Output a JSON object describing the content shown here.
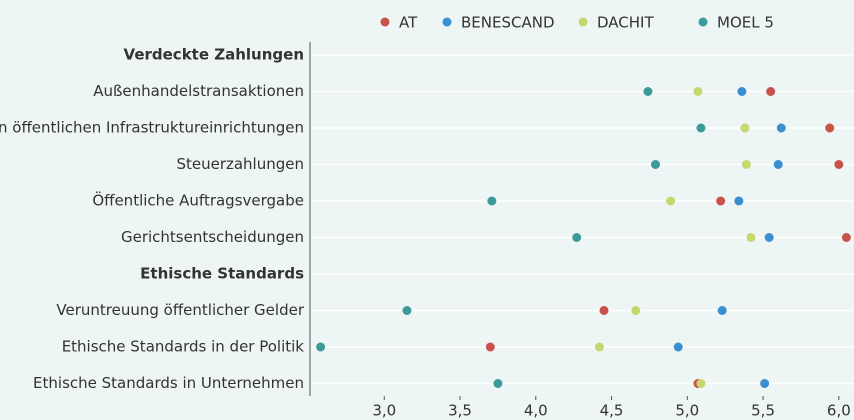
{
  "chart_data": {
    "type": "dot",
    "categories": [
      "Verdeckte Zahlungen",
      "Außenhandelstransaktionen",
      "Vergabe von öffentlichen Infrastruktureinrichtungen",
      "Steuerzahlungen",
      "Öffentliche Auftragsvergabe",
      "Gerichtsentscheidungen",
      "Ethische Standards",
      "Veruntreuung öffentlicher Gelder",
      "Ethische Standards in der Politik",
      "Ethische Standards in Unternehmen"
    ],
    "series": [
      {
        "name": "AT",
        "color": "#c8524a",
        "values": [
          null,
          5.55,
          5.94,
          6.0,
          5.22,
          6.05,
          null,
          4.45,
          3.7,
          5.07
        ]
      },
      {
        "name": "BENESCAND",
        "color": "#3a8fd0",
        "values": [
          null,
          5.36,
          5.62,
          5.6,
          5.34,
          5.54,
          null,
          5.23,
          4.94,
          5.51
        ]
      },
      {
        "name": "DACHIT",
        "color": "#c5d86d",
        "values": [
          null,
          5.07,
          5.38,
          5.39,
          4.89,
          5.42,
          null,
          4.66,
          4.42,
          5.09
        ]
      },
      {
        "name": "MOEL 5",
        "color": "#3d9a9a",
        "values": [
          null,
          4.74,
          5.09,
          4.79,
          3.71,
          4.27,
          null,
          3.15,
          2.58,
          3.75
        ]
      }
    ],
    "xlim": [
      2.51,
      6.1
    ],
    "xticks": [
      {
        "value": 3,
        "label": "3,0"
      },
      {
        "value": 3.5,
        "label": "3,5"
      },
      {
        "value": 4,
        "label": "4,0"
      },
      {
        "value": 4.5,
        "label": "4,5"
      },
      {
        "value": 5,
        "label": "5,0"
      },
      {
        "value": 5.5,
        "label": "5,5"
      },
      {
        "value": 6,
        "label": "6,0"
      }
    ],
    "legend": "top"
  }
}
